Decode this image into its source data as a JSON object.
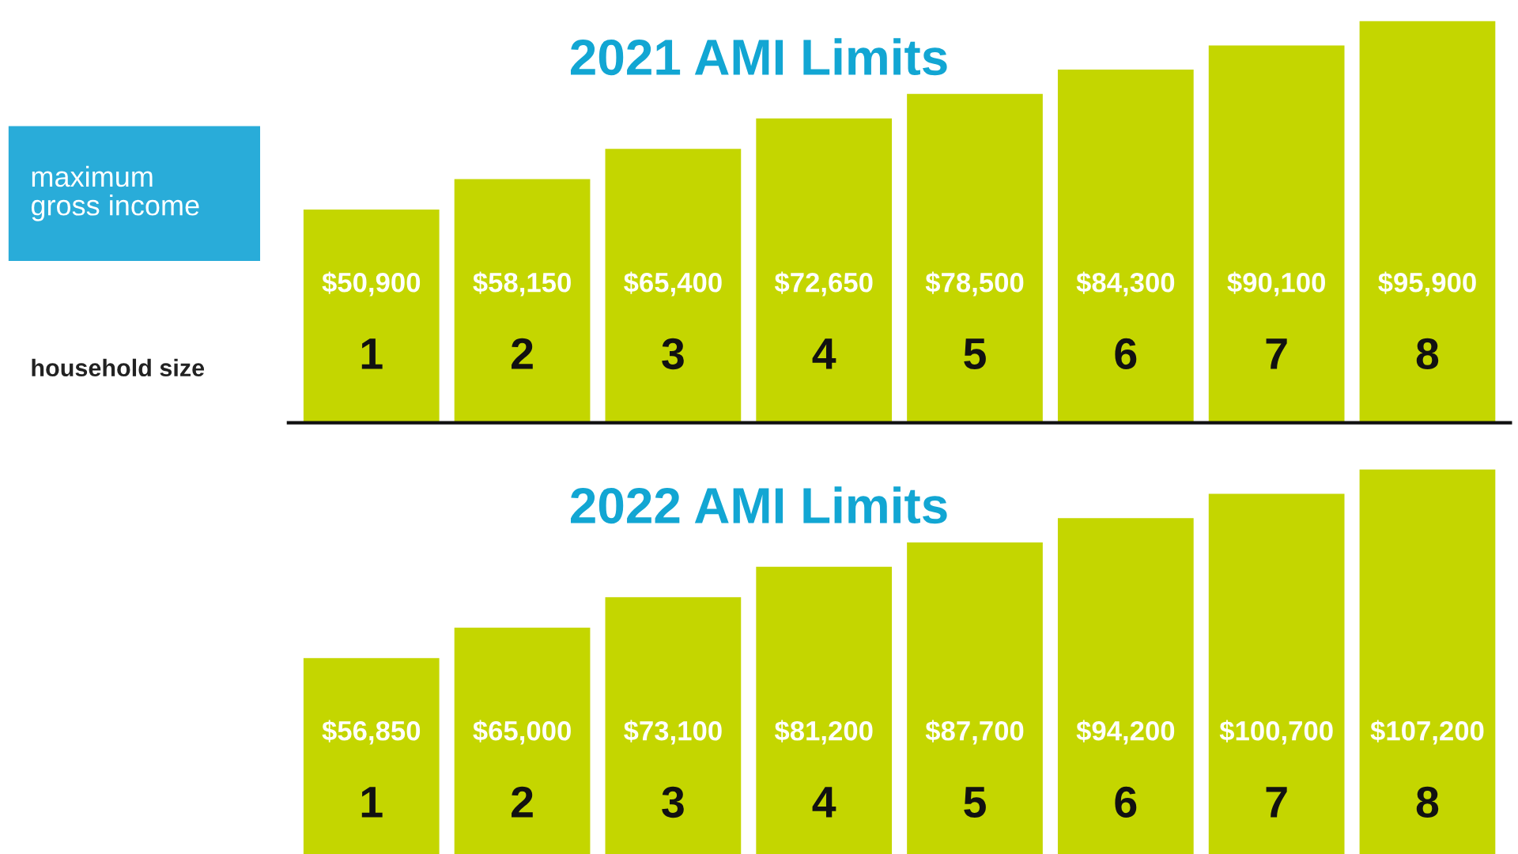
{
  "chart_data": [
    {
      "type": "bar",
      "title": "2021 AMI Limits",
      "categories": [
        "1",
        "2",
        "3",
        "4",
        "5",
        "6",
        "7",
        "8"
      ],
      "values": [
        50900,
        58150,
        65400,
        72650,
        78500,
        84300,
        90100,
        95900
      ],
      "value_labels": [
        "$50,900",
        "$58,150",
        "$65,400",
        "$72,650",
        "$78,500",
        "$84,300",
        "$90,100",
        "$95,900"
      ],
      "color": "#c4d600",
      "annotations": [
        "maximum\ngross income",
        "household size"
      ],
      "tick_labels": "x",
      "grid": false,
      "legend": false
    },
    {
      "type": "bar",
      "title": "2022 AMI Limits",
      "categories": [
        "1",
        "2",
        "3",
        "4",
        "5",
        "6",
        "7",
        "8"
      ],
      "values": [
        56850,
        65000,
        73100,
        81200,
        87700,
        94200,
        100700,
        107200
      ],
      "value_labels": [
        "$56,850",
        "$65,000",
        "$73,100",
        "$81,200",
        "$87,700",
        "$94,200",
        "$100,700",
        "$107,200"
      ],
      "color": "#c4d600",
      "tick_labels": "x",
      "grid": false,
      "legend": false
    }
  ]
}
